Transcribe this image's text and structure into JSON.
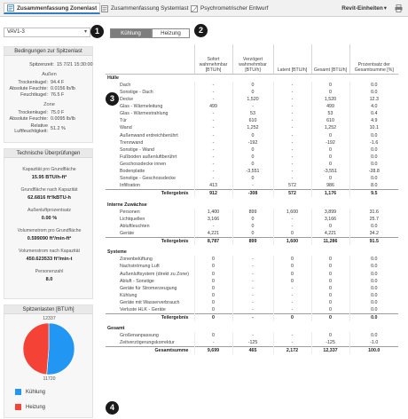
{
  "tabs": [
    {
      "label": "Zusammenfassung Zonenlast",
      "active": true
    },
    {
      "label": "Zusammenfassung Systemlast",
      "active": false
    },
    {
      "label": "Psychrometrischer Entwurf",
      "active": false
    }
  ],
  "units_menu": "Revit-Einheiten",
  "zone_select": "VAV1-3",
  "design_conditions": {
    "header": "Bedingungen zur Spitzenlast",
    "peak_time_label": "Spitzenzeit:",
    "peak_time": "15 7/21 15:30:00",
    "outside_label": "Außen",
    "outside": [
      {
        "label": "Trockenkugel:",
        "value": "94.4 F"
      },
      {
        "label": "Absolute Feuchte:",
        "value": "0.0156 lb/lb"
      },
      {
        "label": "Feuchtkugel:",
        "value": "76.5 F"
      }
    ],
    "zone_label": "Zone",
    "zone": [
      {
        "label": "Trockenkugel:",
        "value": "75.0 F"
      },
      {
        "label": "Absolute Feuchte:",
        "value": "0.0095 lb/lb"
      },
      {
        "label": "Relative Luftfeuchtigkeit:",
        "value": "51.2 %"
      }
    ]
  },
  "technical": {
    "header": "Technische Überprüfungen",
    "items": [
      {
        "label": "Kapazität pro Grundfläche",
        "value": "15.95 BTU/h-ft²"
      },
      {
        "label": "Grundfläche nach Kapazität",
        "value": "62.6816 ft²/kBTU-h"
      },
      {
        "label": "Außenluftprozentsatz",
        "value": "0.00 %"
      },
      {
        "label": "Volumenstrom pro Grundfläche",
        "value": "0.599090 ft³/min-ft²"
      },
      {
        "label": "Volumenstrom nach Kapazität",
        "value": "450.623533 ft³/min-t"
      },
      {
        "label": "Personenzahl",
        "value": "8.0"
      }
    ]
  },
  "peak_chart": {
    "header": "Spitzenlasten [BTU/h]",
    "top_label": "12337",
    "bottom_label": "11720",
    "colors": {
      "cooling": "#2196f3",
      "heating": "#f44336"
    },
    "legend": [
      "Kühlung",
      "Heizung"
    ]
  },
  "chart_data": {
    "type": "pie",
    "title": "Spitzenlasten [BTU/h]",
    "slices": [
      {
        "label": "Kühlung",
        "value": 12337
      },
      {
        "label": "Heizung",
        "value": 11720
      }
    ]
  },
  "mode_toggle": {
    "cooling": "Kühlung",
    "heating": "Heizung",
    "selected": "cooling"
  },
  "columns": [
    "",
    "Sofort wahrnehmbar [BTU/h]",
    "Verzögert wahrnehmbar [BTU/h]",
    "Latent [BTU/h]",
    "Gesamt [BTU/h]",
    "Prozentsatz der Gesamtsumme [%]"
  ],
  "groups": [
    {
      "name": "Hülle",
      "rows": [
        [
          "Dach",
          "-",
          "0",
          "-",
          "0",
          "0.0"
        ],
        [
          "Sonstige - Dach",
          "-",
          "0",
          "-",
          "0",
          "0.0"
        ],
        [
          "Decke",
          "-",
          "1,520",
          "-",
          "1,520",
          "12.3"
        ],
        [
          "Glas - Wärmeleitung",
          "499",
          "-",
          "-",
          "499",
          "4.0"
        ],
        [
          "Glas - Wärmestrahlung",
          "-",
          "53",
          "-",
          "53",
          "0.4"
        ],
        [
          "Tür",
          "-",
          "610",
          "-",
          "610",
          "4.9"
        ],
        [
          "Wand",
          "-",
          "1,252",
          "-",
          "1,252",
          "10.1"
        ],
        [
          "Außenwand erdreichberührt",
          "-",
          "0",
          "-",
          "0",
          "0.0"
        ],
        [
          "Trennwand",
          "-",
          "-192",
          "-",
          "-192",
          "-1.6"
        ],
        [
          "Sonstige - Wand",
          "-",
          "0",
          "-",
          "0",
          "0.0"
        ],
        [
          "Fußboden außenluftberührt",
          "-",
          "0",
          "-",
          "0",
          "0.0"
        ],
        [
          "Geschossdecke innen",
          "-",
          "0",
          "-",
          "0",
          "0.0"
        ],
        [
          "Bodenplatte",
          "-",
          "-3,551",
          "-",
          "-3,551",
          "-28.8"
        ],
        [
          "Sonstige - Geschossdecke",
          "-",
          "0",
          "-",
          "0",
          "0.0"
        ],
        [
          "Infiltration",
          "413",
          "-",
          "572",
          "986",
          "8.0"
        ]
      ],
      "total": [
        "Teilergebnis",
        "912",
        "-308",
        "572",
        "1,176",
        "9.5"
      ]
    },
    {
      "name": "Interne Zuwächse",
      "rows": [
        [
          "Personen",
          "1,400",
          "899",
          "1,600",
          "3,899",
          "31.6"
        ],
        [
          "Lichtquellen",
          "3,166",
          "0",
          "-",
          "3,166",
          "25.7"
        ],
        [
          "Abluftleuchten",
          "-",
          "0",
          "-",
          "0",
          "0.0"
        ],
        [
          "Geräte",
          "4,221",
          "0",
          "0",
          "4,221",
          "34.2"
        ]
      ],
      "total": [
        "Teilergebnis",
        "8,787",
        "899",
        "1,600",
        "11,286",
        "91.5"
      ]
    },
    {
      "name": "Systeme",
      "rows": [
        [
          "Zonenbelüftung",
          "0",
          "-",
          "0",
          "0",
          "0.0"
        ],
        [
          "Nachströmung Luft",
          "0",
          "-",
          "0",
          "0",
          "0.0"
        ],
        [
          "Außenluftsystem (direkt zu Zone)",
          "0",
          "-",
          "0",
          "0",
          "0.0"
        ],
        [
          "Abluft - Sonstige",
          "0",
          "-",
          "0",
          "0",
          "0.0"
        ],
        [
          "Geräte für Stromerzeugung",
          "0",
          "-",
          "-",
          "0",
          "0.0"
        ],
        [
          "Kühlung",
          "0",
          "-",
          "-",
          "0",
          "0.0"
        ],
        [
          "Geräte mit Wasserverbrauch",
          "0",
          "-",
          "-",
          "0",
          "0.0"
        ],
        [
          "Verluste HLK - Geräte",
          "0",
          "-",
          "-",
          "0",
          "0.0"
        ]
      ],
      "total": [
        "Teilergebnis",
        "0",
        "-",
        "0",
        "0",
        "0.0"
      ]
    },
    {
      "name": "Gesamt",
      "rows": [
        [
          "Großenanpassung",
          "0",
          "-",
          "-",
          "0",
          "0.0"
        ],
        [
          "Zeitverzögerungskorrektur",
          "-",
          "-125",
          "-",
          "-125",
          "-1.0"
        ]
      ],
      "total": [
        "Gesamtsumme",
        "9,699",
        "465",
        "2,172",
        "12,337",
        "100.0"
      ]
    }
  ],
  "callouts": [
    "1",
    "2",
    "3",
    "4"
  ]
}
